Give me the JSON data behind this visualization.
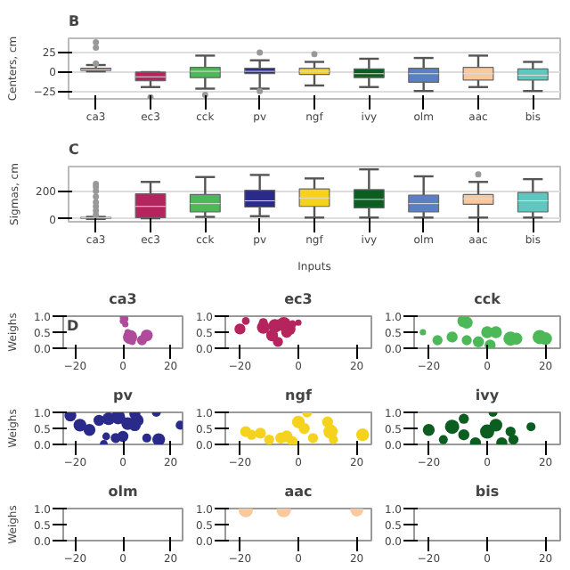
{
  "chart_data": [
    {
      "type": "box",
      "title": "B",
      "ylabel": "Centers, cm",
      "categories": [
        "ca3",
        "ec3",
        "cck",
        "pv",
        "ngf",
        "ivy",
        "olm",
        "aac",
        "bis"
      ],
      "colors": [
        "#b04a9a",
        "#b5245c",
        "#4cb857",
        "#2a2a8a",
        "#f5d21d",
        "#0b5e1f",
        "#5a7fc4",
        "#f9c89b",
        "#5fc7bf"
      ],
      "ylim": [
        -35,
        42
      ],
      "yticks": [
        -25,
        0,
        25
      ],
      "grid": "y",
      "boxes": [
        {
          "low": 0,
          "q1": 1,
          "median": 2,
          "q3": 4,
          "high": 8,
          "outliers": [
            10,
            30,
            37
          ]
        },
        {
          "low": -20,
          "q1": -12,
          "median": -7,
          "q3": -1,
          "high": -1,
          "outliers": [
            -33
          ]
        },
        {
          "low": -22,
          "q1": -8,
          "median": 0,
          "q3": 5,
          "high": 20,
          "outliers": [
            -30
          ]
        },
        {
          "low": -22,
          "q1": -3,
          "median": 0,
          "q3": 4,
          "high": 14,
          "outliers": [
            24,
            -25
          ]
        },
        {
          "low": -18,
          "q1": -4,
          "median": 0,
          "q3": 4,
          "high": 12,
          "outliers": [
            22
          ]
        },
        {
          "low": -20,
          "q1": -8,
          "median": -3,
          "q3": 3,
          "high": 16
        },
        {
          "low": -25,
          "q1": -14,
          "median": -3,
          "q3": 4,
          "high": 17
        },
        {
          "low": -20,
          "q1": -11,
          "median": -3,
          "q3": 5,
          "high": 20
        },
        {
          "low": -25,
          "q1": -11,
          "median": -5,
          "q3": 3,
          "high": 12
        }
      ]
    },
    {
      "type": "box",
      "title": "C",
      "ylabel": "Sigmas, cm",
      "xlabel": "Inputs",
      "categories": [
        "ca3",
        "ec3",
        "cck",
        "pv",
        "ngf",
        "ivy",
        "olm",
        "aac",
        "bis"
      ],
      "colors": [
        "#b04a9a",
        "#b5245c",
        "#4cb857",
        "#2a2a8a",
        "#f5d21d",
        "#0b5e1f",
        "#5a7fc4",
        "#f9c89b",
        "#5fc7bf"
      ],
      "ylim": [
        -20,
        375
      ],
      "yticks": [
        0,
        200
      ],
      "grid": "y",
      "boxes": [
        {
          "low": 0,
          "q1": 5,
          "median": 8,
          "q3": 12,
          "high": 15,
          "outliers": [
            30,
            60,
            90,
            120,
            160,
            200,
            230,
            250
          ]
        },
        {
          "low": 5,
          "q1": 10,
          "median": 90,
          "q3": 180,
          "high": 265
        },
        {
          "low": 15,
          "q1": 50,
          "median": 110,
          "q3": 175,
          "high": 300
        },
        {
          "low": 20,
          "q1": 85,
          "median": 130,
          "q3": 205,
          "high": 315
        },
        {
          "low": 10,
          "q1": 90,
          "median": 150,
          "q3": 215,
          "high": 290
        },
        {
          "low": 10,
          "q1": 80,
          "median": 140,
          "q3": 210,
          "high": 355
        },
        {
          "low": 10,
          "q1": 50,
          "median": 110,
          "q3": 170,
          "high": 305
        },
        {
          "low": 10,
          "q1": 105,
          "median": 145,
          "q3": 175,
          "high": 265,
          "outliers": [
            320
          ]
        },
        {
          "low": 10,
          "q1": 50,
          "median": 130,
          "q3": 190,
          "high": 285
        }
      ]
    },
    {
      "type": "bubble",
      "title": "ca3",
      "ylabel": "Weighs",
      "annotations": [
        "D"
      ],
      "color": "#b04a9a",
      "xlim": [
        -25,
        25
      ],
      "xticks": [
        -20,
        0,
        20
      ],
      "ylim": [
        0,
        1
      ],
      "yticks": [
        {
          "value": 0,
          "label": "0.0"
        },
        {
          "value": 0.5,
          "label": "0.5"
        },
        {
          "value": 1,
          "label": "1.0"
        }
      ],
      "x": [
        0,
        1,
        1,
        3,
        8,
        10,
        2,
        0,
        4
      ],
      "values": [
        0.85,
        0.75,
        0.92,
        0.35,
        0.25,
        0.4,
        0.5,
        0.97,
        0.2
      ],
      "sizes": [
        0.2,
        0.2,
        0.2,
        1,
        0.5,
        0.7,
        0.2,
        0.2,
        0.2
      ]
    },
    {
      "type": "bubble",
      "title": "ec3",
      "color": "#b5245c",
      "xlim": [
        -25,
        25
      ],
      "xticks": [
        -20,
        0,
        20
      ],
      "ylim": [
        0,
        1
      ],
      "yticks": [
        {
          "value": 0,
          "label": "0.0"
        },
        {
          "value": 0.5,
          "label": "0.5"
        },
        {
          "value": 1,
          "label": "1.0"
        }
      ],
      "x": [
        -18,
        -20,
        -12,
        -8,
        -5,
        -9,
        -7,
        -3,
        -2,
        0,
        -4,
        -12
      ],
      "values": [
        0.85,
        0.6,
        0.65,
        0.7,
        0.75,
        0.4,
        0.2,
        0.6,
        0.75,
        0.8,
        0.5,
        0.8
      ],
      "sizes": [
        0.3,
        0.6,
        0.8,
        0.9,
        1,
        0.7,
        0.5,
        0.7,
        0.3,
        0.2,
        0.6,
        0.4
      ]
    },
    {
      "type": "bubble",
      "title": "cck",
      "color": "#4cb857",
      "xlim": [
        -25,
        25
      ],
      "xticks": [
        -20,
        0,
        20
      ],
      "ylim": [
        0,
        1
      ],
      "yticks": [
        {
          "value": 0,
          "label": "0.0"
        },
        {
          "value": 0.5,
          "label": "0.5"
        },
        {
          "value": 1,
          "label": "1.0"
        }
      ],
      "x": [
        -22,
        -17,
        -12,
        -8,
        -7,
        -7,
        -3,
        0,
        3,
        8,
        10,
        18,
        20,
        1
      ],
      "values": [
        0.5,
        0.25,
        0.35,
        0.85,
        0.8,
        0.25,
        0.2,
        0.5,
        0.5,
        0.3,
        0.3,
        0.35,
        0.3,
        0.1
      ],
      "sizes": [
        0.2,
        0.5,
        0.6,
        0.8,
        0.7,
        0.5,
        0.6,
        0.7,
        0.7,
        1,
        0.7,
        1,
        0.8,
        0.6
      ]
    },
    {
      "type": "bubble",
      "title": "pv",
      "ylabel": "Weighs",
      "color": "#2a2a8a",
      "xlim": [
        -25,
        25
      ],
      "xticks": [
        -20,
        0,
        20
      ],
      "ylim": [
        0,
        1
      ],
      "yticks": [
        {
          "value": 0,
          "label": "0.0"
        },
        {
          "value": 0.5,
          "label": "0.5"
        },
        {
          "value": 1,
          "label": "1.0"
        }
      ],
      "x": [
        -22,
        -18,
        -14,
        -10,
        -6,
        -2,
        2,
        5,
        6,
        -7,
        -3,
        0,
        10,
        15,
        -8,
        14,
        24,
        5
      ],
      "values": [
        0.9,
        0.6,
        0.45,
        0.75,
        0.8,
        0.85,
        0.65,
        0.6,
        0.75,
        0.25,
        0.2,
        0.25,
        0.2,
        0.15,
        0.02,
        1.0,
        0.6,
        0.95
      ],
      "sizes": [
        0.7,
        0.8,
        0.7,
        0.6,
        0.8,
        1,
        0.8,
        0.7,
        0.8,
        0.3,
        0.5,
        0.6,
        0.4,
        0.8,
        0.3,
        0.4,
        0.4,
        0.6
      ]
    },
    {
      "type": "bubble",
      "title": "ngf",
      "color": "#f5d21d",
      "xlim": [
        -25,
        25
      ],
      "xticks": [
        -20,
        0,
        20
      ],
      "ylim": [
        0,
        1
      ],
      "yticks": [
        {
          "value": 0,
          "label": "0.0"
        },
        {
          "value": 0.5,
          "label": "0.5"
        },
        {
          "value": 1,
          "label": "1.0"
        }
      ],
      "x": [
        -18,
        -16,
        -13,
        -10,
        -6,
        -4,
        -2,
        0,
        2,
        5,
        10,
        11,
        12,
        22,
        3
      ],
      "values": [
        0.4,
        0.3,
        0.35,
        0.15,
        0.2,
        0.25,
        0.1,
        0.7,
        0.5,
        0.2,
        0.7,
        0.4,
        0.15,
        0.3,
        1.0
      ],
      "sizes": [
        0.6,
        0.5,
        0.6,
        0.5,
        0.6,
        0.7,
        0.5,
        0.8,
        0.6,
        0.5,
        0.6,
        1,
        0.4,
        0.8,
        0.5
      ]
    },
    {
      "type": "bubble",
      "title": "ivy",
      "color": "#0b5e1f",
      "xlim": [
        -25,
        25
      ],
      "xticks": [
        -20,
        0,
        20
      ],
      "ylim": [
        0,
        1
      ],
      "yticks": [
        {
          "value": 0,
          "label": "0.0"
        },
        {
          "value": 0.5,
          "label": "0.5"
        },
        {
          "value": 1,
          "label": "1.0"
        }
      ],
      "x": [
        -20,
        -15,
        -12,
        -8,
        -4,
        0,
        3,
        8,
        9,
        15,
        5,
        -8,
        2
      ],
      "values": [
        0.45,
        0.15,
        0.55,
        0.3,
        0.05,
        0.4,
        0.6,
        0.4,
        0.15,
        0.55,
        0.05,
        0.8,
        1.0
      ],
      "sizes": [
        0.7,
        0.4,
        1,
        0.6,
        0.6,
        1,
        0.8,
        0.5,
        0.5,
        0.4,
        0.6,
        0.5,
        0.4
      ]
    },
    {
      "type": "bubble",
      "title": "olm",
      "ylabel": "Weighs",
      "color": "#5a7fc4",
      "xlim": [
        -25,
        25
      ],
      "xticks": [
        -20,
        0,
        20
      ],
      "ylim": [
        0,
        1
      ],
      "yticks": [
        {
          "value": 0,
          "label": "0.0"
        },
        {
          "value": 0.5,
          "label": "0.5"
        },
        {
          "value": 1,
          "label": "1.0"
        }
      ]
    },
    {
      "type": "bubble",
      "title": "aac",
      "color": "#f9c89b",
      "xlim": [
        -25,
        25
      ],
      "xticks": [
        -20,
        0,
        20
      ],
      "ylim": [
        0,
        1
      ],
      "yticks": [
        {
          "value": 0,
          "label": "0.0"
        },
        {
          "value": 0.5,
          "label": "0.5"
        },
        {
          "value": 1,
          "label": "1.0"
        }
      ],
      "x": [
        -18,
        -5,
        20
      ],
      "values": [
        0.95,
        0.95,
        0.95
      ],
      "sizes": [
        1,
        1,
        0.8
      ]
    },
    {
      "type": "bubble",
      "title": "bis",
      "color": "#5fc7bf",
      "xlim": [
        -25,
        25
      ],
      "xticks": [
        -20,
        0,
        20
      ],
      "ylim": [
        0,
        1
      ],
      "yticks": [
        {
          "value": 0,
          "label": "0.0"
        },
        {
          "value": 0.5,
          "label": "0.5"
        },
        {
          "value": 1,
          "label": "1.0"
        }
      ]
    }
  ]
}
